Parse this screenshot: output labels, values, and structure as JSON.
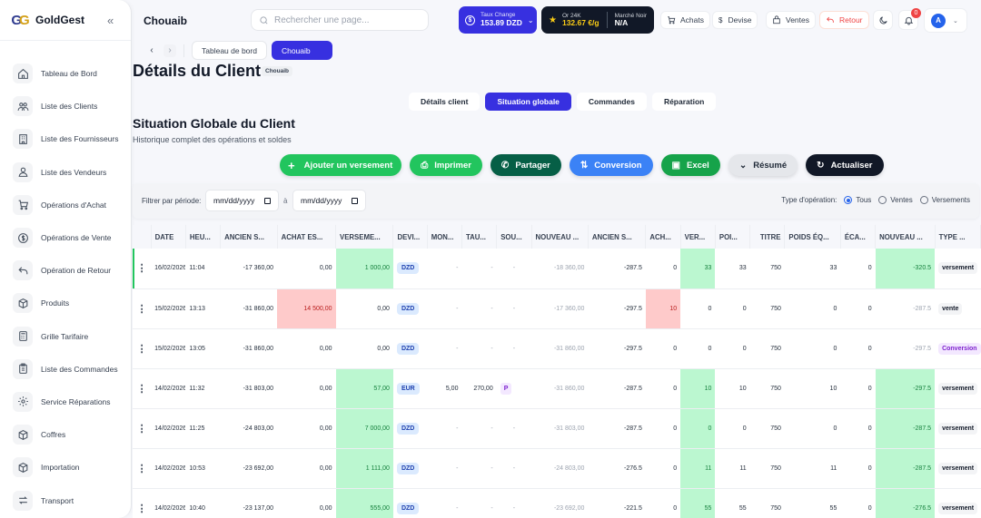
{
  "sidebar": {
    "brand": "GoldGest",
    "logo": "GG",
    "items": [
      {
        "label": "Tableau de Bord",
        "icon": "home-icon"
      },
      {
        "label": "Liste des Clients",
        "icon": "users-icon"
      },
      {
        "label": "Liste des Fournisseurs",
        "icon": "building-icon"
      },
      {
        "label": "Liste des Vendeurs",
        "icon": "user-icon"
      },
      {
        "label": "Opérations d'Achat",
        "icon": "cart-icon"
      },
      {
        "label": "Opérations de Vente",
        "icon": "dollar-icon"
      },
      {
        "label": "Opération de Retour",
        "icon": "return-icon"
      },
      {
        "label": "Produits",
        "icon": "box-icon"
      },
      {
        "label": "Grille Tarifaire",
        "icon": "calculator-icon"
      },
      {
        "label": "Liste des Commandes",
        "icon": "clipboard-icon"
      },
      {
        "label": "Service Réparations",
        "icon": "gear-icon"
      },
      {
        "label": "Coffres",
        "icon": "box-icon"
      },
      {
        "label": "Importation",
        "icon": "box-icon"
      },
      {
        "label": "Transport",
        "icon": "transfer-icon"
      }
    ]
  },
  "header": {
    "page_name": "Chouaib",
    "search_placeholder": "Rechercher une page...",
    "rate": {
      "label": "Taux Change",
      "value": "153.89 DZD"
    },
    "gold": {
      "label": "Or 24K",
      "value": "132.67 €/g",
      "black_label": "Marché Noir",
      "black_value": "N/A"
    },
    "buttons": {
      "achats": "Achats",
      "devise": "Devise",
      "ventes": "Ventes",
      "retour": "Retour"
    },
    "notifications": "0",
    "avatar": "A"
  },
  "breadcrumb": {
    "items": [
      "Tableau de bord",
      "Chouaib"
    ]
  },
  "page": {
    "title": "Détails du Client",
    "client_chip": "Chouaib",
    "tabs": [
      "Détails client",
      "Situation globale",
      "Commandes",
      "Réparation"
    ],
    "active_tab": 1,
    "section_title": "Situation Globale du Client",
    "section_subtitle": "Historique complet des opérations et soldes"
  },
  "actions": {
    "add": "Ajouter un versement",
    "print": "Imprimer",
    "share": "Partager",
    "convert": "Conversion",
    "excel": "Excel",
    "summary": "Résumé",
    "refresh": "Actualiser"
  },
  "filter": {
    "label": "Filtrer par période:",
    "from_placeholder": "mm/dd/yyyy",
    "to_label": "à",
    "to_placeholder": "mm/dd/yyyy",
    "type_label": "Type d'opération:",
    "options": [
      "Tous",
      "Ventes",
      "Versements"
    ],
    "selected": "Tous"
  },
  "table": {
    "columns": [
      "",
      "DATE",
      "HEU...",
      "ANCIEN S...",
      "ACHAT ES...",
      "VERSEME...",
      "DEVI...",
      "MON...",
      "TAU...",
      "SOU...",
      "NOUVEAU ...",
      "ANCIEN S...",
      "ACH...",
      "VER...",
      "POI...",
      "TITRE",
      "POIDS ÉQ...",
      "ÉCA...",
      "NOUVEAU ...",
      "TYPE ..."
    ],
    "rows": [
      [
        "16/02/2026",
        "11:04",
        "-17 360,00",
        "0,00",
        "1 000,00",
        "DZD",
        "-",
        "-",
        "-",
        "-18 360,00",
        "-287.5",
        "0",
        "33",
        "33",
        "750",
        "33",
        "0",
        "-320.5",
        "versement"
      ],
      [
        "15/02/2026",
        "13:13",
        "-31 860,00",
        "14 500,00",
        "0,00",
        "DZD",
        "-",
        "-",
        "-",
        "-17 360,00",
        "-297.5",
        "10",
        "0",
        "0",
        "750",
        "0",
        "0",
        "-287.5",
        "vente"
      ],
      [
        "15/02/2026",
        "13:05",
        "-31 860,00",
        "0,00",
        "0,00",
        "DZD",
        "-",
        "-",
        "-",
        "-31 860,00",
        "-297.5",
        "0",
        "0",
        "0",
        "750",
        "0",
        "0",
        "-297.5",
        "Conversion"
      ],
      [
        "14/02/2026",
        "11:32",
        "-31 803,00",
        "0,00",
        "57,00",
        "EUR",
        "5,00",
        "270,00",
        "P",
        "-31 860,00",
        "-287.5",
        "0",
        "10",
        "10",
        "750",
        "10",
        "0",
        "-297.5",
        "versement"
      ],
      [
        "14/02/2026",
        "11:25",
        "-24 803,00",
        "0,00",
        "7 000,00",
        "DZD",
        "-",
        "-",
        "-",
        "-31 803,00",
        "-287.5",
        "0",
        "0",
        "0",
        "750",
        "0",
        "0",
        "-287.5",
        "versement"
      ],
      [
        "14/02/2026",
        "10:53",
        "-23 692,00",
        "0,00",
        "1 111,00",
        "DZD",
        "-",
        "-",
        "-",
        "-24 803,00",
        "-276.5",
        "0",
        "11",
        "11",
        "750",
        "11",
        "0",
        "-287.5",
        "versement"
      ],
      [
        "14/02/2026",
        "10:40",
        "-23 137,00",
        "0,00",
        "555,00",
        "DZD",
        "-",
        "-",
        "-",
        "-23 692,00",
        "-221.5",
        "0",
        "55",
        "55",
        "750",
        "55",
        "0",
        "-276.5",
        "versement"
      ]
    ]
  }
}
